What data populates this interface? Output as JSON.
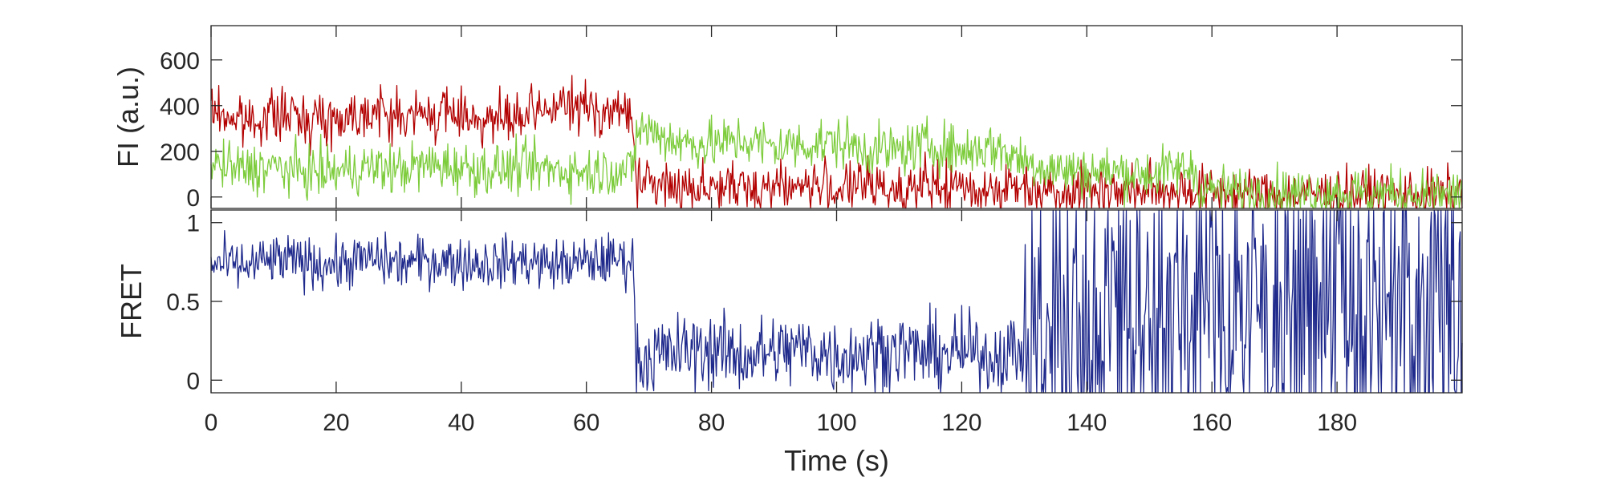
{
  "chart_data": [
    {
      "type": "line",
      "ylabel": "FI (a.u.)",
      "xlabel": "",
      "xlim": [
        0,
        200
      ],
      "ylim": [
        -50,
        750
      ],
      "yticks": [
        0,
        200,
        400,
        600
      ],
      "ytick_labels": [
        "0",
        "200",
        "400",
        "600"
      ],
      "grid": false,
      "series": [
        {
          "color": "#b30000",
          "x": [
            0,
            5,
            10,
            15,
            20,
            25,
            30,
            35,
            40,
            45,
            50,
            55,
            60,
            65,
            67.5,
            68,
            70,
            75,
            80,
            85,
            90,
            95,
            100,
            105,
            110,
            115,
            120,
            125,
            130,
            135,
            140,
            145,
            150,
            155,
            160,
            165,
            170,
            175,
            180,
            185,
            190,
            195,
            200
          ],
          "values": [
            380,
            330,
            360,
            350,
            340,
            380,
            350,
            360,
            370,
            330,
            340,
            400,
            390,
            370,
            360,
            50,
            60,
            40,
            50,
            30,
            55,
            45,
            40,
            50,
            35,
            45,
            40,
            35,
            45,
            30,
            40,
            30,
            25,
            35,
            20,
            15,
            10,
            15,
            10,
            15,
            10,
            10,
            15
          ]
        },
        {
          "color": "#7dcc3c",
          "x": [
            0,
            5,
            10,
            15,
            20,
            25,
            30,
            35,
            40,
            45,
            50,
            55,
            60,
            65,
            67.5,
            68,
            70,
            75,
            80,
            85,
            90,
            95,
            100,
            105,
            110,
            115,
            120,
            125,
            130,
            135,
            140,
            145,
            150,
            155,
            157,
            158,
            160,
            165,
            170,
            175,
            180,
            185,
            190,
            195,
            200
          ],
          "values": [
            140,
            120,
            130,
            110,
            110,
            130,
            120,
            140,
            130,
            120,
            130,
            120,
            110,
            120,
            110,
            300,
            290,
            240,
            230,
            250,
            220,
            230,
            240,
            210,
            200,
            230,
            200,
            220,
            160,
            120,
            110,
            110,
            100,
            120,
            130,
            40,
            30,
            20,
            20,
            15,
            20,
            15,
            15,
            10,
            10
          ]
        }
      ]
    },
    {
      "type": "line",
      "ylabel": "FRET",
      "xlabel": "Time (s)",
      "xlim": [
        0,
        200
      ],
      "ylim": [
        -0.08,
        1.08
      ],
      "yticks": [
        0,
        0.5,
        1
      ],
      "ytick_labels": [
        "0",
        "0.5",
        "1"
      ],
      "xticks": [
        0,
        20,
        40,
        60,
        80,
        100,
        120,
        140,
        160,
        180
      ],
      "xtick_labels": [
        "0",
        "20",
        "40",
        "60",
        "80",
        "100",
        "120",
        "140",
        "160",
        "180"
      ],
      "grid": false,
      "series": [
        {
          "color": "#1f2a8c",
          "x": [
            0,
            5,
            10,
            15,
            20,
            25,
            30,
            35,
            40,
            45,
            50,
            55,
            60,
            65,
            67.5,
            68,
            70,
            75,
            80,
            85,
            90,
            95,
            100,
            105,
            110,
            115,
            120,
            125,
            130,
            135,
            140,
            145,
            150,
            155,
            160,
            165,
            170,
            175,
            180,
            185,
            190,
            195,
            200
          ],
          "values": [
            0.74,
            0.72,
            0.76,
            0.75,
            0.73,
            0.77,
            0.74,
            0.76,
            0.75,
            0.74,
            0.76,
            0.73,
            0.75,
            0.77,
            0.76,
            0.12,
            0.15,
            0.18,
            0.2,
            0.15,
            0.18,
            0.2,
            0.15,
            0.18,
            0.2,
            0.16,
            0.18,
            0.15,
            0.2,
            0.4,
            0.45,
            0.5,
            0.45,
            0.5,
            0.42,
            0.5,
            0.48,
            0.5,
            0.45,
            0.5,
            0.48,
            0.5,
            0.5
          ]
        }
      ]
    }
  ]
}
